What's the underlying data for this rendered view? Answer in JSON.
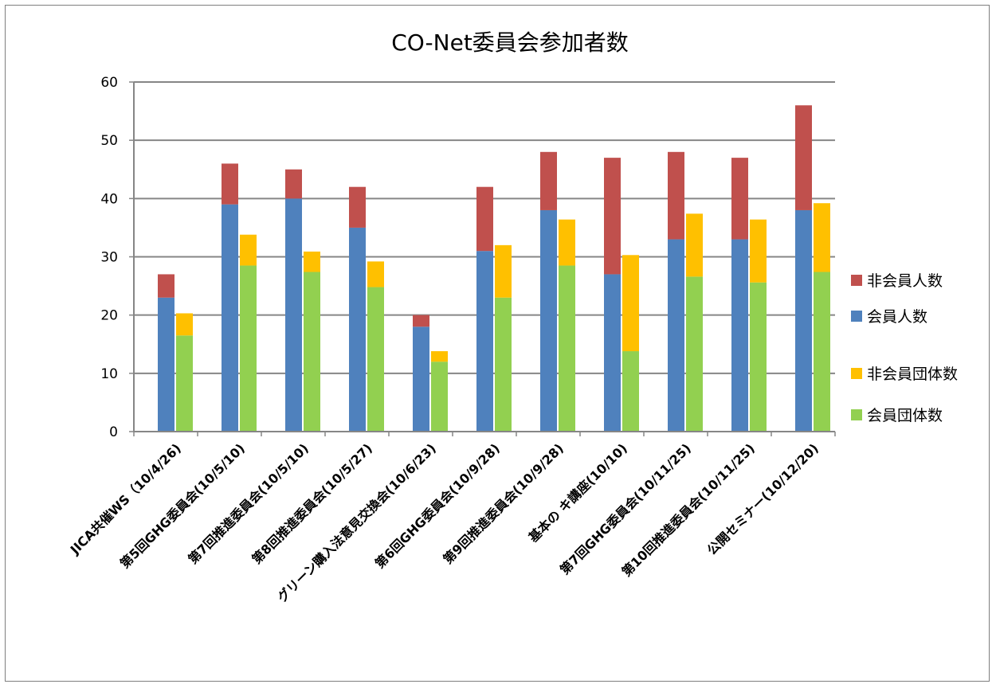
{
  "chart_data": {
    "type": "bar",
    "title": "CO-Net委員会参加者数",
    "xlabel": "",
    "ylabel": "",
    "ylim": [
      0,
      60
    ],
    "yticks": [
      0,
      10,
      20,
      30,
      40,
      50,
      60
    ],
    "grid": true,
    "legend_position": "right",
    "categories": [
      "JICA共催WS（10/4/26)",
      "第5回GHG委員会(10/5/10)",
      "第7回推進委員会(10/5/10)",
      "第8回推進委員会(10/5/27)",
      "グリーン購入法意見交換会(10/6/23)",
      "第6回GHG委員会(10/9/28)",
      "第9回推進委員会(10/9/28)",
      "基本の キ講座(10/10)",
      "第7回GHG委員会(10/11/25)",
      "第10回推進委員会(10/11/25)",
      "公開セミナー(10/12/20)"
    ],
    "stacks": [
      {
        "name": "persons",
        "series": [
          {
            "name": "会員人数",
            "color": "#4f81bd",
            "values": [
              23,
              39,
              40,
              35,
              18,
              31,
              38,
              27,
              33,
              33,
              38
            ]
          },
          {
            "name": "非会員人数",
            "color": "#c0504d",
            "values": [
              4,
              7,
              5,
              7,
              2,
              11,
              10,
              20,
              15,
              14,
              18
            ]
          }
        ]
      },
      {
        "name": "organizations",
        "series": [
          {
            "name": "会員団体数",
            "color": "#92d050",
            "values": [
              16.5,
              28.5,
              27.4,
              24.8,
              12,
              23,
              28.5,
              13.8,
              26.6,
              25.6,
              27.4
            ]
          },
          {
            "name": "非会員団体数",
            "color": "#ffc000",
            "values": [
              3.8,
              5.3,
              3.5,
              4.4,
              1.8,
              9,
              7.9,
              16.5,
              10.8,
              10.8,
              11.8
            ]
          }
        ]
      }
    ],
    "legend": [
      {
        "label": "非会員人数",
        "color": "#c0504d"
      },
      {
        "label": "会員人数",
        "color": "#4f81bd"
      },
      {
        "label": "非会員団体数",
        "color": "#ffc000"
      },
      {
        "label": "会員団体数",
        "color": "#92d050"
      }
    ]
  }
}
